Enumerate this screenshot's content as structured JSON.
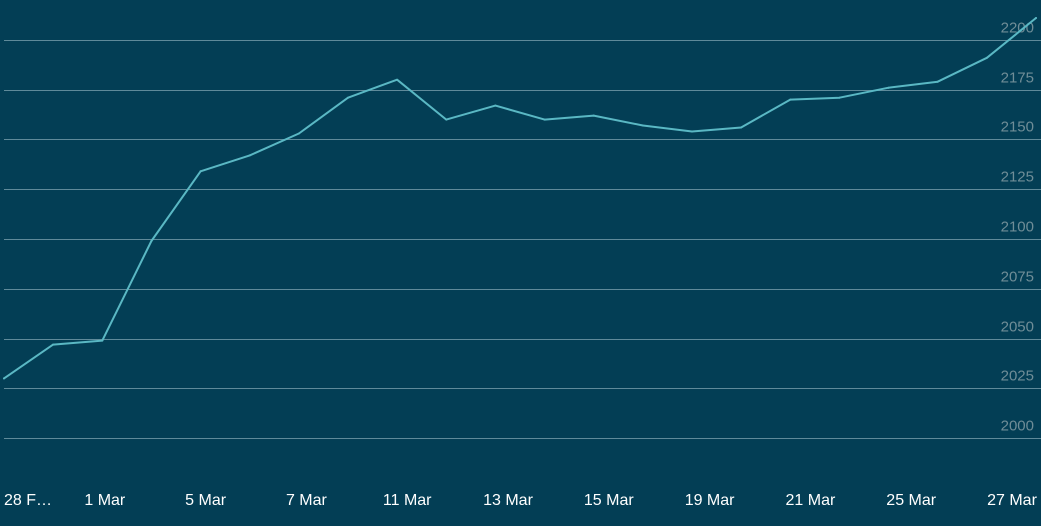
{
  "chart_data": {
    "type": "line",
    "title": "",
    "xlabel": "",
    "ylabel": "",
    "grid": true,
    "legend": "none",
    "ylim": [
      1985,
      2210
    ],
    "y_ticks": [
      2000,
      2025,
      2050,
      2075,
      2100,
      2125,
      2150,
      2175,
      2200
    ],
    "x_tick_labels": [
      "28 F…",
      "1 Mar",
      "5 Mar",
      "7 Mar",
      "11 Mar",
      "13 Mar",
      "15 Mar",
      "19 Mar",
      "21 Mar",
      "25 Mar",
      "27 Mar"
    ],
    "colors": {
      "background": "#033e55",
      "line": "#5ab8c4",
      "grid": "#5f8a9a",
      "y_tick_text": "#6f8d97",
      "x_tick_text": "#ffffff"
    },
    "series": [
      {
        "values": [
          2030,
          2047,
          2049,
          2099,
          2134,
          2142,
          2153,
          2171,
          2180,
          2160,
          2167,
          2160,
          2162,
          2157,
          2154,
          2156,
          2170,
          2171,
          2176,
          2179,
          2191,
          2211
        ]
      }
    ]
  }
}
